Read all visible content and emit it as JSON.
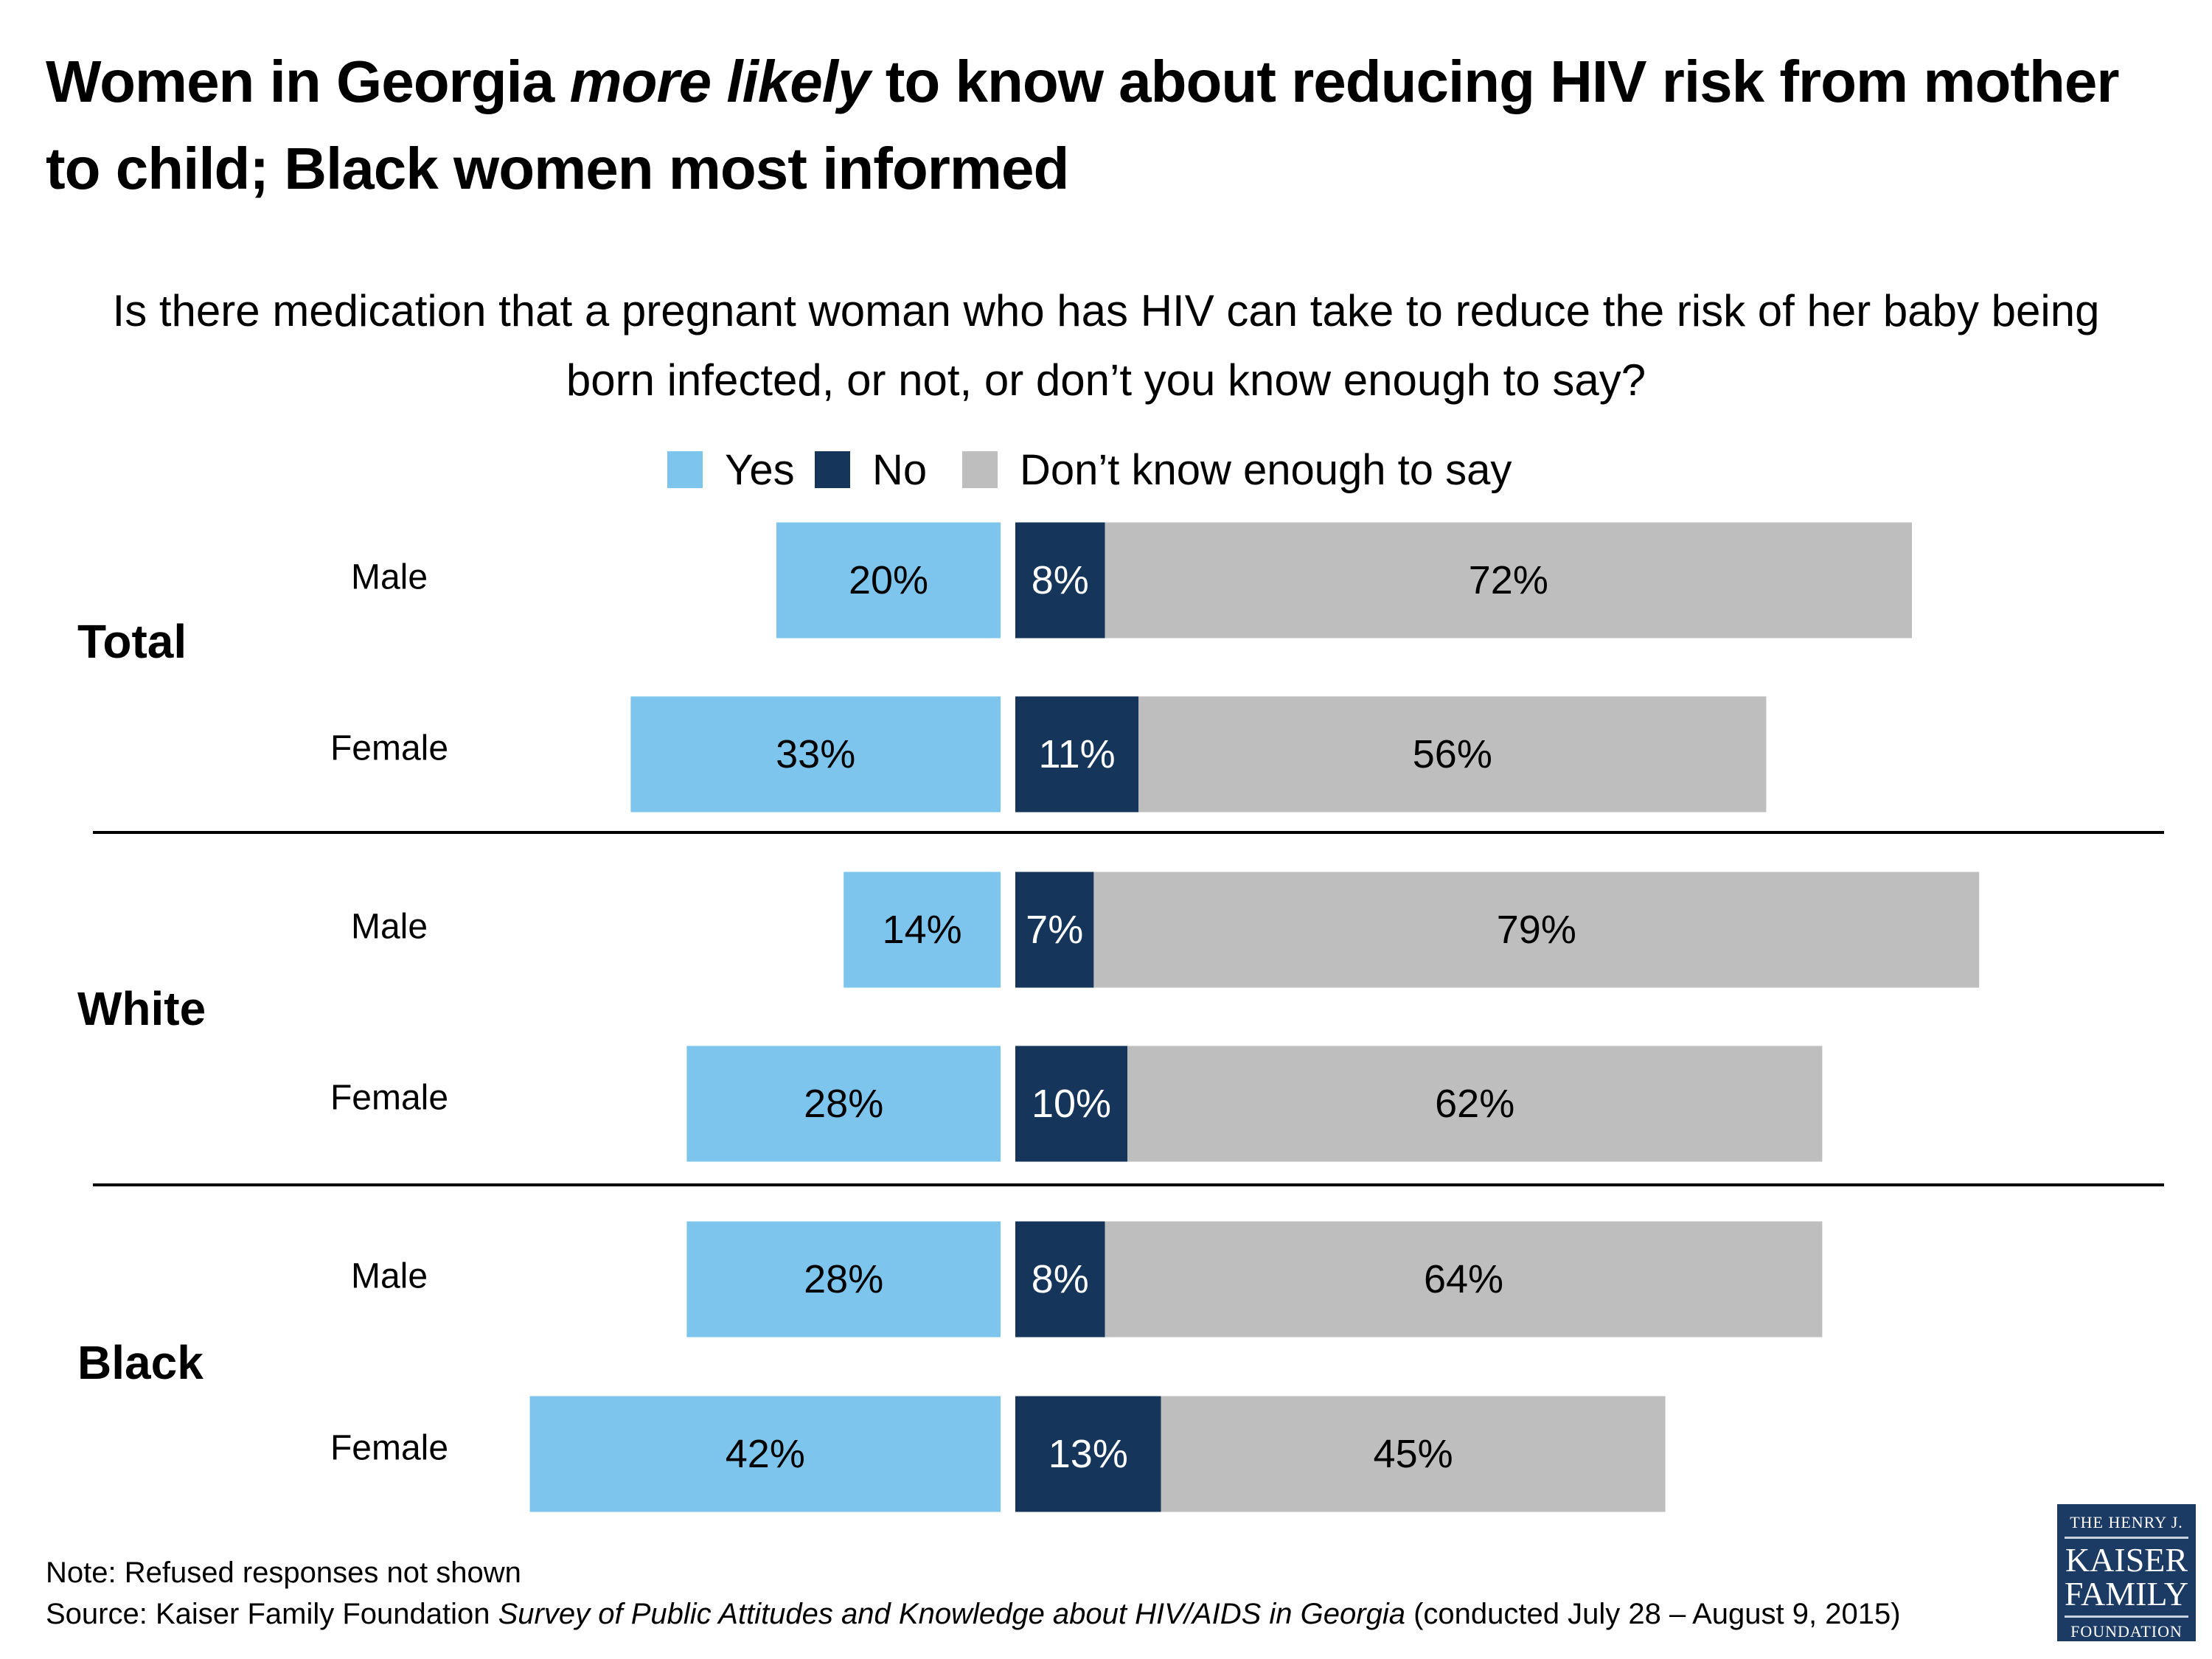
{
  "title": {
    "part1": "Women in Georgia ",
    "emphasis": "more likely",
    "part2": " to know about reducing HIV risk from mother to child; Black women most informed"
  },
  "subtitle": "Is there medication that a pregnant woman who has HIV can take to reduce the risk of her baby being born infected, or not, or don’t you know enough to say?",
  "legend": [
    {
      "label": "Yes",
      "color": "#7dc5ec"
    },
    {
      "label": "No",
      "color": "#15355b"
    },
    {
      "label": "Don’t know enough to say",
      "color": "#bebebe"
    }
  ],
  "chart_data": {
    "type": "bar",
    "orientation": "horizontal",
    "layout": "diverging-stacked",
    "title": "Women in Georgia more likely to know about reducing HIV risk from mother to child; Black women most informed",
    "subtitle": "Is there medication that a pregnant woman who has HIV can take to reduce the risk of her baby being born infected, or not, or don’t you know enough to say?",
    "groups": [
      "Total",
      "White",
      "Black"
    ],
    "categories": [
      "Male",
      "Female",
      "Male",
      "Female",
      "Male",
      "Female"
    ],
    "category_groups": [
      "Total",
      "Total",
      "White",
      "White",
      "Black",
      "Black"
    ],
    "series": [
      {
        "name": "Yes",
        "color": "#7dc5ec",
        "values": [
          20,
          33,
          14,
          28,
          28,
          42
        ]
      },
      {
        "name": "No",
        "color": "#15355b",
        "values": [
          8,
          11,
          7,
          10,
          8,
          13
        ]
      },
      {
        "name": "Don’t know enough to say",
        "color": "#bebebe",
        "values": [
          72,
          56,
          79,
          62,
          64,
          45
        ]
      }
    ],
    "value_format": "percent",
    "legend_position": "top-center",
    "grid": false,
    "xlabel": "",
    "ylabel": ""
  },
  "footer": {
    "note": "Note: Refused responses not shown",
    "source_prefix": "Source: Kaiser Family Foundation ",
    "source_title": "Survey of Public Attitudes and Knowledge about HIV/AIDS in Georgia",
    "source_suffix": " (conducted July 28 – August 9, 2015)"
  },
  "logo": {
    "line1": "THE HENRY J.",
    "line2": "KAISER",
    "line3": "FAMILY",
    "line4": "FOUNDATION"
  }
}
